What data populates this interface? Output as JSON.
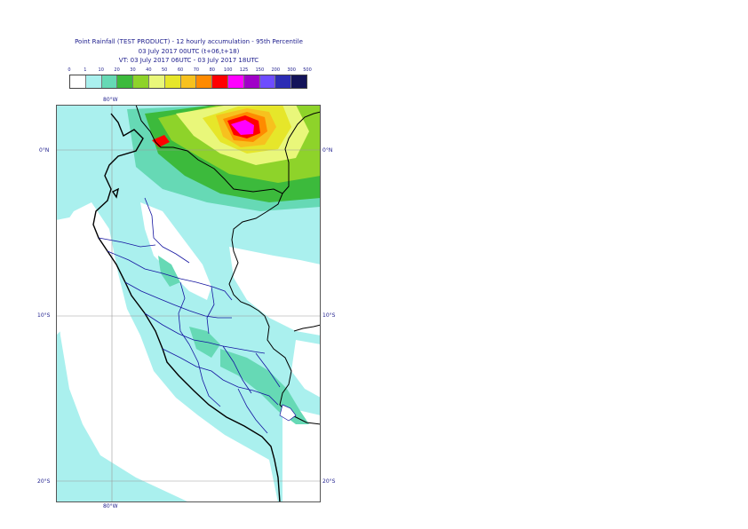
{
  "title": {
    "line1": "Point Rainfall (TEST PRODUCT) - 12 hourly accumulation - 95th Percentile",
    "line2": "03 July 2017 00UTC (t+06,t+18)",
    "line3": "VT: 03 July 2017 06UTC - 03 July 2017 18UTC"
  },
  "legend": {
    "thresholds": [
      "0",
      "1",
      "10",
      "20",
      "30",
      "40",
      "50",
      "60",
      "70",
      "80",
      "100",
      "125",
      "150",
      "200",
      "300",
      "500"
    ],
    "colors": [
      "#ffffff",
      "#aaf0ee",
      "#66d9b5",
      "#3cba3c",
      "#8ed32a",
      "#e9f77a",
      "#e6e62a",
      "#f7c11e",
      "#ff8a00",
      "#ff0000",
      "#ff00ff",
      "#a000c8",
      "#6e4cff",
      "#2c2cb4",
      "#14145a"
    ]
  },
  "axes": {
    "lon_label_top": "80°W",
    "lon_label_bottom": "80°W",
    "lat_labels": [
      "0°N",
      "10°S",
      "20°S"
    ]
  },
  "map": {
    "background_color": "#aaf0ee",
    "coastline_color": "#000000",
    "border_color": "#1414a0",
    "rain_max_region": "northern Peru / Ecuador Amazon"
  }
}
